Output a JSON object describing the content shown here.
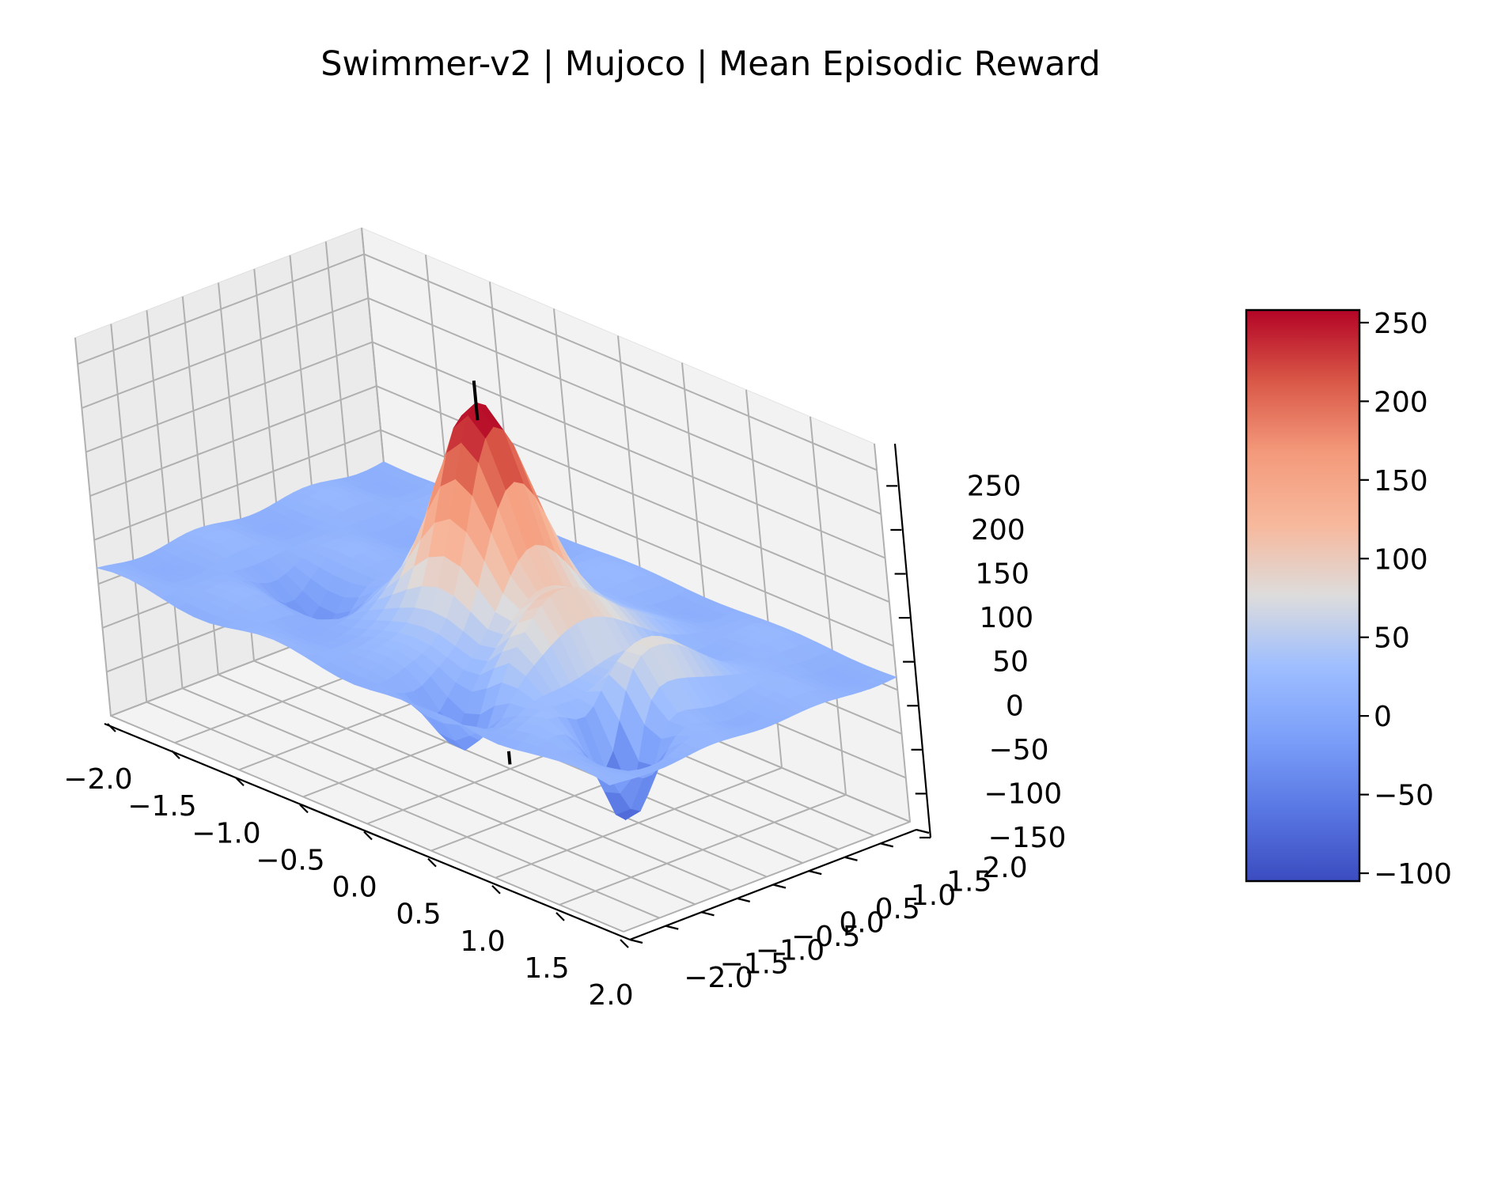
{
  "chart_data": {
    "type": "surface3d",
    "title": "Swimmer-v2 | Mujoco | Mean Episodic Reward",
    "xlabel": "",
    "ylabel": "",
    "zlabel": "",
    "xlim": [
      -2.0,
      2.0
    ],
    "ylim": [
      -2.0,
      2.0
    ],
    "zlim": [
      -150,
      280
    ],
    "x_ticks": [
      "−2.0",
      "−1.5",
      "−1.0",
      "−0.5",
      "0.0",
      "0.5",
      "1.0",
      "1.5",
      "2.0"
    ],
    "y_ticks": [
      "−2.0",
      "−1.5",
      "−1.0",
      "−0.5",
      "0.0",
      "0.5",
      "1.0",
      "1.5",
      "2.0"
    ],
    "z_ticks": [
      "−150",
      "−100",
      "−50",
      "0",
      "50",
      "100",
      "150",
      "200",
      "250"
    ],
    "colormap": "coolwarm",
    "colorbar": {
      "min": -105,
      "max": 258,
      "ticks": [
        "−100",
        "−50",
        "0",
        "50",
        "100",
        "150",
        "200",
        "250"
      ]
    },
    "peak": {
      "x": 0.0,
      "y": 0.0,
      "z": 258
    },
    "surface_features": [
      {
        "description": "central peak",
        "x": 0.0,
        "y": 0.0,
        "z": 258
      },
      {
        "description": "ridge",
        "x": 1.0,
        "y": -0.3,
        "z": 150
      },
      {
        "description": "minimum",
        "x": 1.5,
        "y": -1.0,
        "z": -105
      },
      {
        "description": "baseline plateau",
        "z": 15
      }
    ],
    "grid": true,
    "optimum_marker": {
      "x": 0.0,
      "y": 0.0,
      "color": "#000000"
    }
  }
}
